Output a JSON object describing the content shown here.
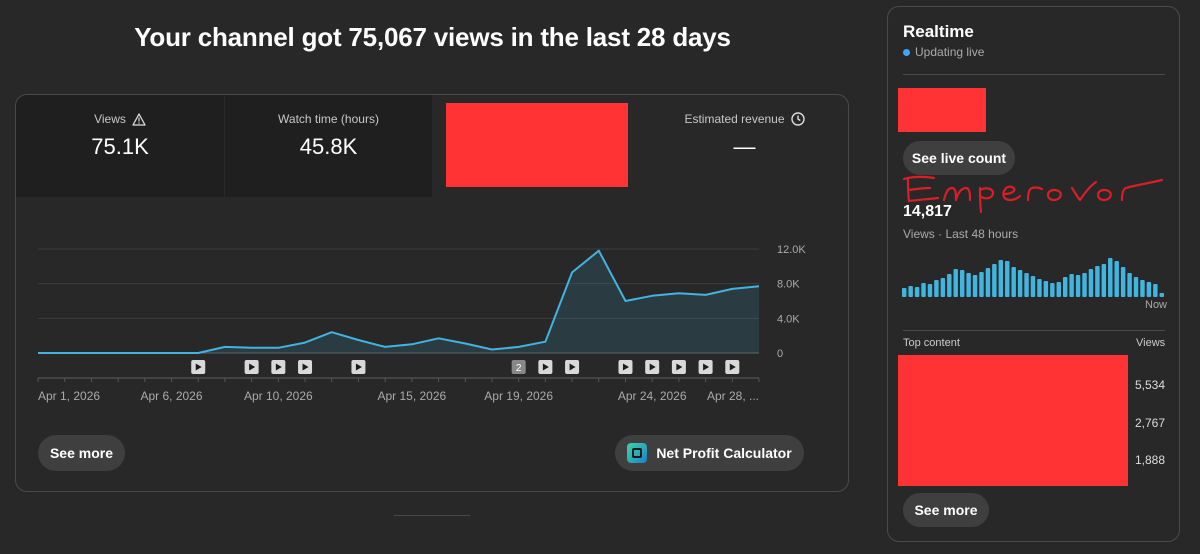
{
  "headline": "Your channel got 75,067 views in the last 28 days",
  "tabs": [
    {
      "label": "Views",
      "value": "75.1K",
      "icon": "warning-icon"
    },
    {
      "label": "Watch time (hours)",
      "value": "45.8K"
    },
    {
      "label": "Estimated revenue",
      "value": "—",
      "icon": "clock-icon"
    }
  ],
  "chart_data": {
    "type": "area",
    "x": [
      "Apr 1",
      "Apr 2",
      "Apr 3",
      "Apr 4",
      "Apr 5",
      "Apr 6",
      "Apr 7",
      "Apr 8",
      "Apr 9",
      "Apr 10",
      "Apr 11",
      "Apr 12",
      "Apr 13",
      "Apr 14",
      "Apr 15",
      "Apr 16",
      "Apr 17",
      "Apr 18",
      "Apr 19",
      "Apr 20",
      "Apr 21",
      "Apr 22",
      "Apr 23",
      "Apr 24",
      "Apr 25",
      "Apr 26",
      "Apr 27",
      "Apr 28"
    ],
    "values": [
      0,
      0,
      0,
      0,
      0,
      0,
      0,
      700,
      600,
      600,
      1200,
      2400,
      1500,
      700,
      1000,
      1700,
      1100,
      400,
      700,
      1300,
      9300,
      11800,
      6000,
      6600,
      6900,
      6700,
      7400,
      7700
    ],
    "y_ticks": [
      "12.0K",
      "8.0K",
      "4.0K",
      "0"
    ],
    "ylim": [
      0,
      12000
    ],
    "x_tick_labels": [
      {
        "i": 0,
        "label": "Apr 1, 2026"
      },
      {
        "i": 5,
        "label": "Apr 6, 2026"
      },
      {
        "i": 9,
        "label": "Apr 10, 2026"
      },
      {
        "i": 14,
        "label": "Apr 15, 2026"
      },
      {
        "i": 18,
        "label": "Apr 19, 2026"
      },
      {
        "i": 23,
        "label": "Apr 24, 2026"
      },
      {
        "i": 27,
        "label": "Apr 28, ..."
      }
    ],
    "video_markers": [
      {
        "i": 6,
        "label": ""
      },
      {
        "i": 8,
        "label": ""
      },
      {
        "i": 9,
        "label": ""
      },
      {
        "i": 10,
        "label": ""
      },
      {
        "i": 12,
        "label": ""
      },
      {
        "i": 18,
        "label": "2"
      },
      {
        "i": 19,
        "label": ""
      },
      {
        "i": 20,
        "label": ""
      },
      {
        "i": 22,
        "label": ""
      },
      {
        "i": 23,
        "label": ""
      },
      {
        "i": 24,
        "label": ""
      },
      {
        "i": 25,
        "label": ""
      },
      {
        "i": 26,
        "label": ""
      }
    ],
    "line_color": "#41b4e0"
  },
  "buttons": {
    "see_more": "See more",
    "net_profit": "Net Profit Calculator"
  },
  "realtime": {
    "title": "Realtime",
    "status": "Updating live",
    "see_live_count": "See live count",
    "signature": "Emperor",
    "count": "14,817",
    "count_sub": "Views · Last 48 hours",
    "now_label": "Now",
    "bars": [
      0.18,
      0.22,
      0.2,
      0.28,
      0.26,
      0.34,
      0.38,
      0.46,
      0.56,
      0.54,
      0.48,
      0.44,
      0.5,
      0.58,
      0.66,
      0.74,
      0.72,
      0.6,
      0.54,
      0.48,
      0.42,
      0.36,
      0.32,
      0.28,
      0.3,
      0.4,
      0.46,
      0.44,
      0.48,
      0.56,
      0.62,
      0.66,
      0.78,
      0.72,
      0.6,
      0.48,
      0.4,
      0.34,
      0.3,
      0.26,
      0.08
    ],
    "top_content_label": "Top content",
    "views_label": "Views",
    "top_values": [
      "5,534",
      "2,767",
      "1,888"
    ],
    "see_more": "See more"
  }
}
